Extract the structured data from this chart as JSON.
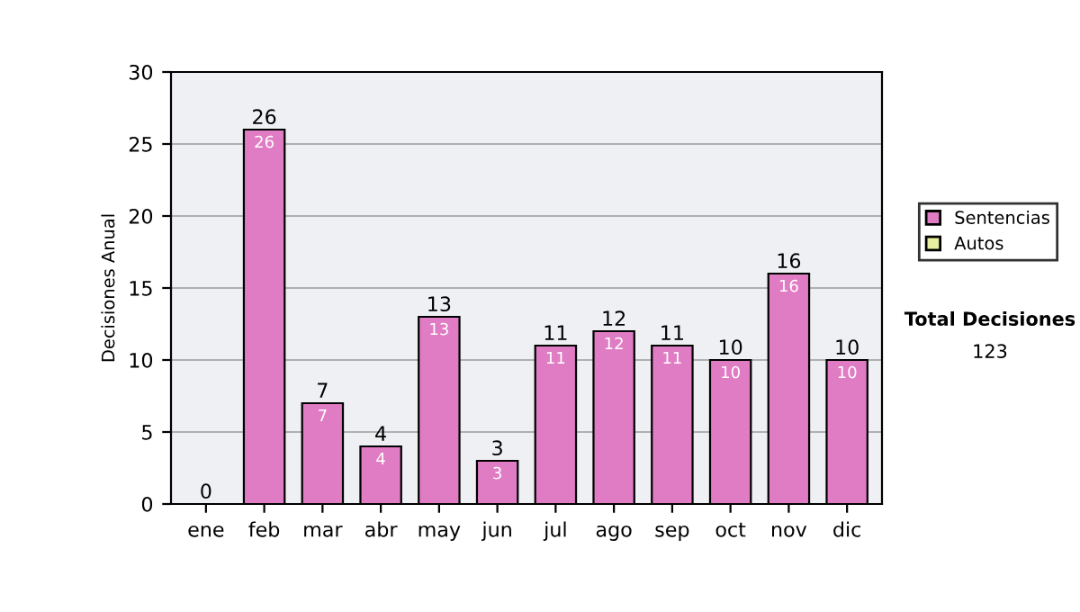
{
  "chart_data": {
    "type": "bar",
    "ylabel": "Decisiones Anual",
    "categories": [
      "ene",
      "feb",
      "mar",
      "abr",
      "may",
      "jun",
      "jul",
      "ago",
      "sep",
      "oct",
      "nov",
      "dic"
    ],
    "series": [
      {
        "name": "Sentencias",
        "color": "#e07cc4",
        "values": [
          0,
          26,
          7,
          4,
          13,
          3,
          11,
          12,
          11,
          10,
          16,
          10
        ],
        "value_labels": [
          null,
          "26",
          "7",
          "4",
          "13",
          "3",
          "11",
          "12",
          "11",
          "10",
          "16",
          "10"
        ]
      },
      {
        "name": "Autos",
        "color": "#e8f0a0",
        "values": [
          null,
          null,
          null,
          null,
          null,
          null,
          null,
          null,
          null,
          null,
          null,
          null
        ]
      }
    ],
    "totals": [
      "0",
      "26",
      "7",
      "4",
      "13",
      "3",
      "11",
      "12",
      "11",
      "10",
      "16",
      "10"
    ],
    "ylim": [
      0,
      30
    ],
    "yticks": [
      0,
      5,
      10,
      15,
      20,
      25,
      30
    ],
    "grid": "y",
    "legend": "right",
    "annotations": [
      "Total Decisiones",
      "123"
    ]
  }
}
